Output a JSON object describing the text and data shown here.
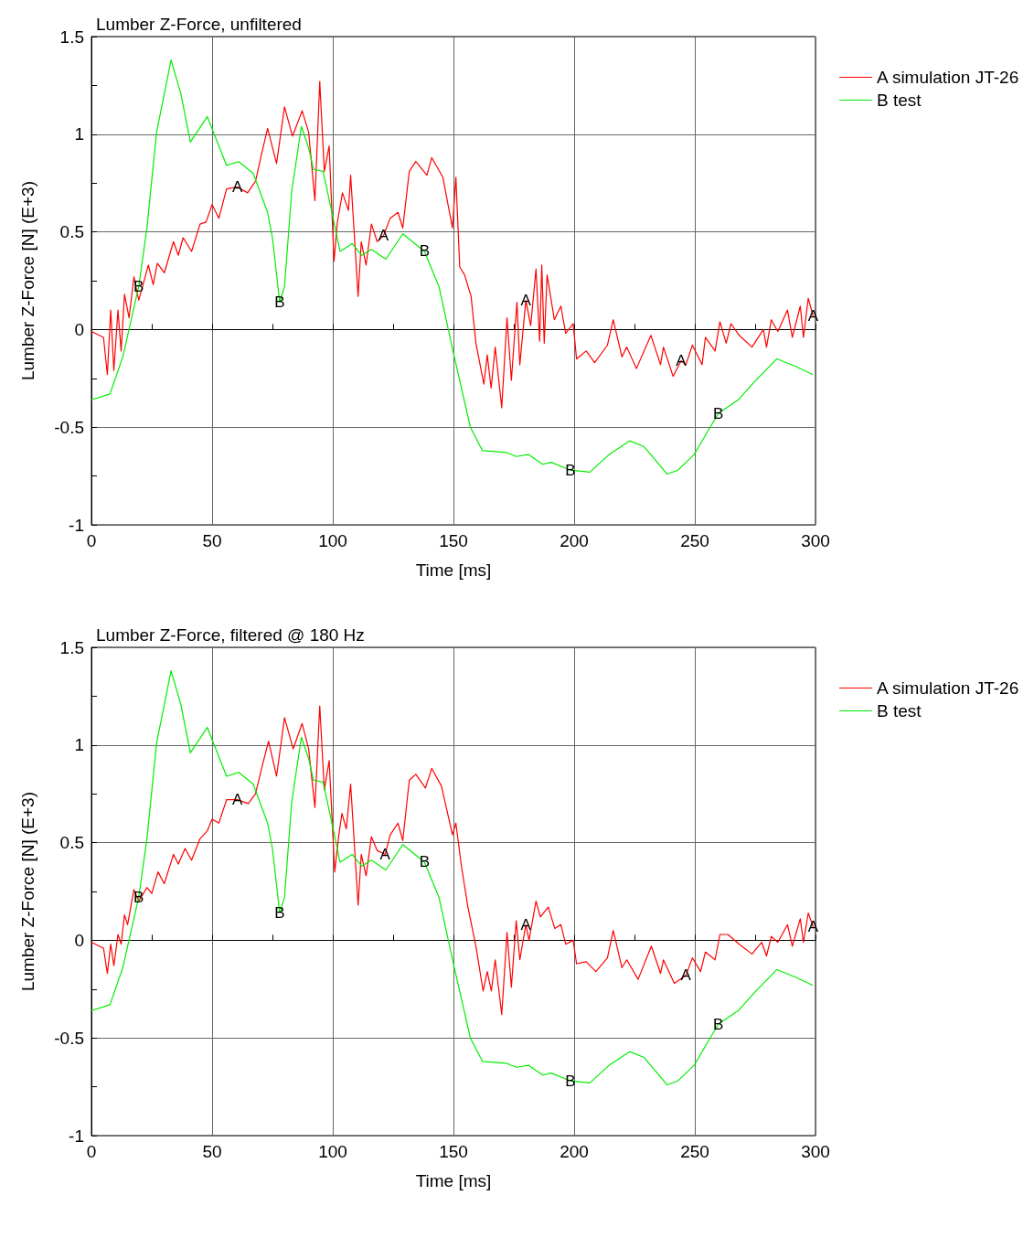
{
  "chart_data": [
    {
      "type": "line",
      "title": "Lumber Z-Force, unfiltered",
      "xlabel": "Time [ms]",
      "ylabel": "Lumber Z-Force [N] (E+3)",
      "xlim": [
        0,
        300
      ],
      "ylim": [
        -1,
        1.5
      ],
      "xticks": [
        0,
        {
          "value": 25,
          "label": null
        },
        50,
        {
          "value": 75,
          "label": null
        },
        100,
        {
          "value": 125,
          "label": null
        },
        150,
        {
          "value": 175,
          "label": null
        },
        200,
        {
          "value": 225,
          "label": null
        },
        250,
        {
          "value": 275,
          "label": null
        },
        300
      ],
      "yticks": [
        -1,
        {
          "value": -0.75,
          "label": null
        },
        -0.5,
        {
          "value": -0.25,
          "label": null
        },
        0,
        {
          "value": 0.25,
          "label": null
        },
        0.5,
        {
          "value": 0.75,
          "label": null
        },
        1,
        {
          "value": 1.25,
          "label": null
        },
        1.5
      ],
      "grid": true,
      "legend": "top right",
      "marker": "none",
      "line_style": "solid",
      "annotations": [
        {
          "text": "A",
          "x": 60.5,
          "y": 0.73
        },
        {
          "text": "A",
          "x": 121,
          "y": 0.48
        },
        {
          "text": "A",
          "x": 180,
          "y": 0.15
        },
        {
          "text": "A",
          "x": 244.3,
          "y": -0.16
        },
        {
          "text": "A",
          "x": 299,
          "y": 0.07
        },
        {
          "text": "B",
          "x": 19.6,
          "y": 0.22
        },
        {
          "text": "B",
          "x": 78,
          "y": 0.14
        },
        {
          "text": "B",
          "x": 138,
          "y": 0.4
        },
        {
          "text": "B",
          "x": 198.5,
          "y": -0.72
        },
        {
          "text": "B",
          "x": 259.7,
          "y": -0.43
        }
      ],
      "series": [
        {
          "name": "A simulation JT-26",
          "color": "#ff0000",
          "x": [
            0,
            5,
            6.6,
            8,
            9.3,
            11,
            12.3,
            13.7,
            15.6,
            17.6,
            19.6,
            23.6,
            25.6,
            27.3,
            30.2,
            34,
            36,
            38,
            41.5,
            45,
            47.5,
            50,
            52.8,
            56,
            60.5,
            64.7,
            68,
            70.7,
            73,
            76.7,
            80,
            83.3,
            87.3,
            90,
            92.6,
            94.6,
            96.5,
            98.5,
            100.5,
            101.9,
            104,
            106.5,
            107.4,
            110.5,
            111.8,
            113.8,
            116,
            118.4,
            121,
            123.8,
            127,
            129,
            131.7,
            134.4,
            139,
            141,
            145.6,
            149.6,
            151,
            152.6,
            154.6,
            157.3,
            159.3,
            162.6,
            164,
            165.6,
            167.3,
            170,
            172.2,
            174,
            176.3,
            177.5,
            180,
            182,
            184.2,
            185.7,
            186.6,
            187.6,
            188.8,
            191.8,
            194.5,
            196.5,
            199.6,
            201,
            205,
            208.5,
            213.8,
            216.2,
            219.8,
            221.8,
            225.8,
            231.8,
            235.8,
            237,
            241,
            244.3,
            246.3,
            249,
            253,
            254.4,
            258.4,
            260.4,
            263,
            265,
            268.4,
            273.7,
            278.4,
            279.7,
            281.7,
            284.4,
            288.4,
            290.4,
            293.7,
            295,
            297,
            299
          ],
          "values": [
            -0.01,
            -0.04,
            -0.23,
            0.1,
            -0.21,
            0.1,
            -0.11,
            0.18,
            0.06,
            0.27,
            0.15,
            0.33,
            0.23,
            0.34,
            0.29,
            0.45,
            0.38,
            0.47,
            0.4,
            0.54,
            0.55,
            0.64,
            0.57,
            0.72,
            0.73,
            0.7,
            0.76,
            0.91,
            1.03,
            0.85,
            1.14,
            0.99,
            1.12,
            1.01,
            0.66,
            1.27,
            0.81,
            0.94,
            0.35,
            0.55,
            0.7,
            0.61,
            0.79,
            0.17,
            0.45,
            0.33,
            0.54,
            0.45,
            0.48,
            0.57,
            0.6,
            0.52,
            0.81,
            0.86,
            0.79,
            0.88,
            0.78,
            0.52,
            0.78,
            0.32,
            0.28,
            0.17,
            -0.07,
            -0.28,
            -0.13,
            -0.3,
            -0.09,
            -0.4,
            0.06,
            -0.26,
            0.14,
            -0.18,
            0.15,
            0.02,
            0.31,
            -0.06,
            0.33,
            -0.07,
            0.28,
            0.05,
            0.12,
            -0.02,
            0.03,
            -0.15,
            -0.11,
            -0.17,
            -0.08,
            0.05,
            -0.14,
            -0.09,
            -0.2,
            -0.03,
            -0.18,
            -0.09,
            -0.24,
            -0.16,
            -0.18,
            -0.08,
            -0.18,
            -0.04,
            -0.11,
            0.04,
            -0.07,
            0.03,
            -0.03,
            -0.09,
            0,
            -0.09,
            0.05,
            -0.01,
            0.1,
            -0.04,
            0.12,
            -0.04,
            0.16,
            0.07
          ]
        },
        {
          "name": "B test",
          "color": "#00ee00",
          "x": [
            0,
            7.7,
            13,
            19.6,
            23,
            27,
            33,
            37,
            41,
            48,
            56,
            61,
            67,
            73,
            75,
            78,
            80,
            83,
            87,
            90,
            92,
            96,
            100,
            103,
            108,
            112,
            116,
            122,
            129,
            138,
            144,
            150,
            157,
            162,
            172,
            176,
            181,
            187,
            190.5,
            198.5,
            206.5,
            214.5,
            223,
            229,
            238.5,
            243,
            249.7,
            259.7,
            268,
            274.5,
            284,
            292,
            298.7
          ],
          "values": [
            -0.36,
            -0.33,
            -0.14,
            0.22,
            0.52,
            1.01,
            1.38,
            1.21,
            0.96,
            1.09,
            0.84,
            0.86,
            0.8,
            0.6,
            0.47,
            0.14,
            0.22,
            0.71,
            1.04,
            0.93,
            0.82,
            0.81,
            0.58,
            0.4,
            0.44,
            0.38,
            0.41,
            0.36,
            0.49,
            0.4,
            0.22,
            -0.12,
            -0.5,
            -0.62,
            -0.63,
            -0.65,
            -0.64,
            -0.69,
            -0.68,
            -0.72,
            -0.73,
            -0.64,
            -0.57,
            -0.6,
            -0.74,
            -0.72,
            -0.64,
            -0.43,
            -0.36,
            -0.27,
            -0.15,
            -0.19,
            -0.23
          ]
        }
      ]
    },
    {
      "type": "line",
      "title": "Lumber Z-Force, filtered @ 180 Hz",
      "xlabel": "Time [ms]",
      "ylabel": "Lumber Z-Force [N] (E+3)",
      "xlim": [
        0,
        300
      ],
      "ylim": [
        -1,
        1.5
      ],
      "xticks": [
        0,
        {
          "value": 25,
          "label": null
        },
        50,
        {
          "value": 75,
          "label": null
        },
        100,
        {
          "value": 125,
          "label": null
        },
        150,
        {
          "value": 175,
          "label": null
        },
        200,
        {
          "value": 225,
          "label": null
        },
        250,
        {
          "value": 275,
          "label": null
        },
        300
      ],
      "yticks": [
        -1,
        {
          "value": -0.75,
          "label": null
        },
        -0.5,
        {
          "value": -0.25,
          "label": null
        },
        0,
        {
          "value": 0.25,
          "label": null
        },
        0.5,
        {
          "value": 0.75,
          "label": null
        },
        1,
        {
          "value": 1.25,
          "label": null
        },
        1.5
      ],
      "grid": true,
      "legend": "top right",
      "marker": "none",
      "line_style": "solid",
      "annotations": [
        {
          "text": "A",
          "x": 60.5,
          "y": 0.72
        },
        {
          "text": "A",
          "x": 121.7,
          "y": 0.44
        },
        {
          "text": "A",
          "x": 180,
          "y": 0.08
        },
        {
          "text": "A",
          "x": 246.3,
          "y": -0.18
        },
        {
          "text": "A",
          "x": 299,
          "y": 0.07
        },
        {
          "text": "B",
          "x": 19.6,
          "y": 0.22
        },
        {
          "text": "B",
          "x": 78,
          "y": 0.14
        },
        {
          "text": "B",
          "x": 138,
          "y": 0.4
        },
        {
          "text": "B",
          "x": 198.5,
          "y": -0.72
        },
        {
          "text": "B",
          "x": 259.7,
          "y": -0.43
        }
      ],
      "series": [
        {
          "name": "A simulation JT-26",
          "color": "#ff0000",
          "x": [
            0,
            5,
            6.6,
            8,
            9.3,
            11,
            12.3,
            13.7,
            15,
            17.6,
            19.6,
            23,
            25,
            27.6,
            30.2,
            34,
            36,
            38.8,
            41.5,
            45,
            48,
            50,
            52.8,
            56,
            60.5,
            65,
            68,
            70.7,
            73.4,
            76.7,
            80,
            83.6,
            87.3,
            90,
            92.6,
            94.6,
            96.5,
            98.5,
            100.8,
            102.5,
            103.8,
            105.6,
            107.4,
            110.5,
            111.8,
            113.8,
            116,
            118.4,
            121.7,
            123.8,
            127,
            129,
            131.7,
            134.4,
            138.4,
            141,
            145,
            149.6,
            151,
            153.3,
            156,
            159.3,
            162.3,
            164,
            165.7,
            167.3,
            170,
            172.2,
            174,
            176,
            177.5,
            180,
            181.3,
            184.2,
            186,
            189.3,
            192,
            194.5,
            196.5,
            199.6,
            201,
            205,
            209,
            213.8,
            216.2,
            219.8,
            221.8,
            226.5,
            232,
            235.8,
            237,
            241.5,
            246.3,
            249,
            252.4,
            254.4,
            258.4,
            260.4,
            263.7,
            268.4,
            273.7,
            277.7,
            279.7,
            281.7,
            284.4,
            288.4,
            290.4,
            293.7,
            295,
            297,
            299
          ],
          "values": [
            -0.01,
            -0.04,
            -0.17,
            -0.02,
            -0.13,
            0.03,
            -0.02,
            0.13,
            0.08,
            0.26,
            0.2,
            0.27,
            0.24,
            0.35,
            0.29,
            0.44,
            0.39,
            0.47,
            0.41,
            0.52,
            0.56,
            0.62,
            0.6,
            0.72,
            0.72,
            0.7,
            0.75,
            0.89,
            1.02,
            0.84,
            1.14,
            0.98,
            1.11,
            0.98,
            0.68,
            1.2,
            0.77,
            0.92,
            0.35,
            0.54,
            0.65,
            0.57,
            0.8,
            0.18,
            0.44,
            0.33,
            0.53,
            0.46,
            0.44,
            0.54,
            0.6,
            0.51,
            0.82,
            0.85,
            0.78,
            0.88,
            0.79,
            0.54,
            0.6,
            0.38,
            0.17,
            -0.03,
            -0.26,
            -0.16,
            -0.26,
            -0.1,
            -0.38,
            0.04,
            -0.24,
            0.1,
            -0.1,
            0.08,
            0,
            0.2,
            0.12,
            0.17,
            0.06,
            0.08,
            -0.02,
            0,
            -0.12,
            -0.11,
            -0.16,
            -0.09,
            0.05,
            -0.14,
            -0.1,
            -0.2,
            -0.03,
            -0.17,
            -0.1,
            -0.22,
            -0.18,
            -0.09,
            -0.16,
            -0.06,
            -0.1,
            0.03,
            0.03,
            -0.02,
            -0.07,
            -0.01,
            -0.08,
            0.02,
            -0.01,
            0.08,
            -0.03,
            0.11,
            -0.01,
            0.14,
            0.07
          ]
        },
        {
          "name": "B test",
          "color": "#00ee00",
          "x": [
            0,
            7.7,
            13,
            19.6,
            23,
            27,
            33,
            37,
            41,
            48,
            56,
            61,
            67,
            73,
            75,
            78,
            80,
            83,
            87,
            90,
            92,
            96,
            100,
            103,
            108,
            112,
            116,
            122,
            129,
            138,
            144,
            150,
            157,
            162,
            172,
            176,
            181,
            187,
            190.5,
            198.5,
            206.5,
            214.5,
            223,
            229,
            238.5,
            243,
            249.7,
            259.7,
            268,
            274.5,
            284,
            292,
            298.7
          ],
          "values": [
            -0.36,
            -0.33,
            -0.14,
            0.22,
            0.52,
            1.01,
            1.38,
            1.21,
            0.96,
            1.09,
            0.84,
            0.86,
            0.8,
            0.6,
            0.47,
            0.14,
            0.22,
            0.71,
            1.04,
            0.93,
            0.82,
            0.81,
            0.58,
            0.4,
            0.44,
            0.38,
            0.41,
            0.36,
            0.49,
            0.4,
            0.22,
            -0.12,
            -0.5,
            -0.62,
            -0.63,
            -0.65,
            -0.64,
            -0.69,
            -0.68,
            -0.72,
            -0.73,
            -0.64,
            -0.57,
            -0.6,
            -0.74,
            -0.72,
            -0.64,
            -0.43,
            -0.36,
            -0.27,
            -0.15,
            -0.19,
            -0.23
          ]
        }
      ]
    }
  ]
}
